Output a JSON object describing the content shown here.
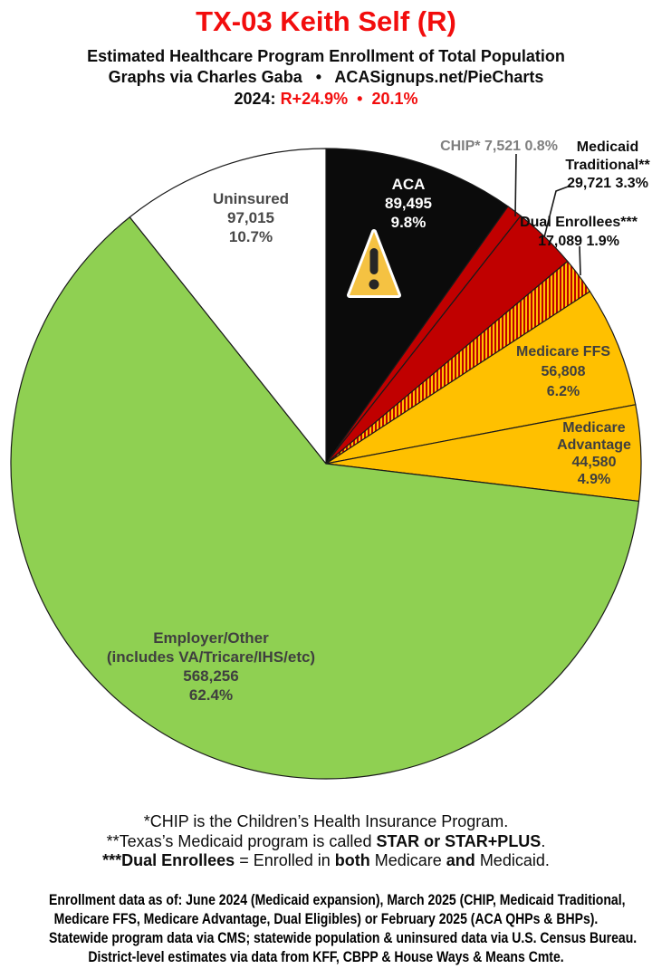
{
  "header": {
    "title": "TX-03 Keith Self (R)",
    "subtitle": "Estimated Healthcare Program Enrollment of Total Population",
    "credit": "Graphs via Charles Gaba   •   ACASignups.net/PieCharts",
    "partisan_segments": [
      {
        "t": "2024: ",
        "c": "#0d0d0d"
      },
      {
        "t": "R+24.9%",
        "c": "#F20D0D"
      },
      {
        "t": "  •  ",
        "c": "#F20D0D"
      },
      {
        "t": "20.1%",
        "c": "#F20D0D"
      }
    ]
  },
  "chart_data": {
    "type": "pie",
    "title": "Estimated Healthcare Program Enrollment of Total Population",
    "district_label": "TX-03 Keith Self (R)",
    "start_angle": "12 o'clock",
    "direction": "clockwise",
    "slices": [
      {
        "label": "ACA",
        "value": 89495,
        "display_value": "89,495",
        "pct": 9.8,
        "color": "#0b0b0b",
        "pattern": false
      },
      {
        "label": "CHIP*",
        "value": 7521,
        "display_value": "7,521",
        "pct": 0.8,
        "color": "#C00000",
        "pattern": false
      },
      {
        "label": "Medicaid Traditional**",
        "value": 29721,
        "display_value": "29,721",
        "pct": 3.3,
        "color": "#C00000",
        "pattern": false
      },
      {
        "label": "Dual Enrollees***",
        "value": 17089,
        "display_value": "17,089",
        "pct": 1.9,
        "color": "#C00000",
        "pattern": true,
        "pattern_stripe": "#FFC000"
      },
      {
        "label": "Medicare FFS",
        "value": 56808,
        "display_value": "56,808",
        "pct": 6.2,
        "color": "#FFC000",
        "pattern": false
      },
      {
        "label": "Medicare Advantage",
        "value": 44580,
        "display_value": "44,580",
        "pct": 4.9,
        "color": "#FFC000",
        "pattern": false
      },
      {
        "label": "Employer/Other (includes VA/Tricare/IHS/etc)",
        "value": 568256,
        "display_value": "568,256",
        "pct": 62.4,
        "color": "#8FD052",
        "pattern": false
      },
      {
        "label": "Uninsured",
        "value": 97015,
        "display_value": "97,015",
        "pct": 10.7,
        "color": "#FFFFFF",
        "pattern": false
      }
    ]
  },
  "slice_labels": {
    "aca": [
      "ACA",
      "89,495",
      "9.8%"
    ],
    "uninsured": [
      "Uninsured",
      "97,015",
      "10.7%"
    ],
    "chip": [
      "CHIP* 7,521 0.8%"
    ],
    "medicaid": [
      "Medicaid",
      "Traditional**",
      "29,721 3.3%"
    ],
    "dual": [
      "Dual Enrollees***",
      "17,089 1.9%"
    ],
    "medicare_ffs": [
      "Medicare FFS",
      "56,808",
      "6.2%"
    ],
    "medicare_adv": [
      "Medicare",
      "Advantage",
      "44,580",
      "4.9%"
    ],
    "employer": [
      "Employer/Other",
      "(includes VA/Tricare/IHS/etc)",
      "568,256",
      "62.4%"
    ]
  },
  "footnotes": [
    [
      {
        "t": "*CHIP is the Children’s Health Insurance Program.",
        "b": false
      }
    ],
    [
      {
        "t": "**Texas’s Medicaid program is called ",
        "b": false
      },
      {
        "t": "STAR or STAR+PLUS",
        "b": true
      },
      {
        "t": ".",
        "b": false
      }
    ],
    [
      {
        "t": "***Dual Enrollees",
        "b": true
      },
      {
        "t": " = Enrolled in ",
        "b": false
      },
      {
        "t": "both",
        "b": true
      },
      {
        "t": " Medicare ",
        "b": false
      },
      {
        "t": "and",
        "b": true
      },
      {
        "t": " Medicaid.",
        "b": false
      }
    ]
  ],
  "sources": [
    "Enrollment data as of: June 2024 (Medicaid expansion), March 2025 (CHIP, Medicaid Traditional,",
    "Medicare FFS, Medicare Advantage, Dual Eligibles) or February 2025 (ACA QHPs & BHPs).",
    "Statewide program data via CMS; statewide population & uninsured data via U.S. Census Bureau.",
    "District-level estimates via data from KFF, CBPP & House Ways & Means Cmte."
  ],
  "theme": {
    "title_red": "#F20D0D",
    "slice_outline": "#1a1a1a",
    "gray_outside_label": "#7f7f7f",
    "dark_slice_label": "#3f3f3f",
    "warning_triangle_fill": "#F5C242"
  }
}
